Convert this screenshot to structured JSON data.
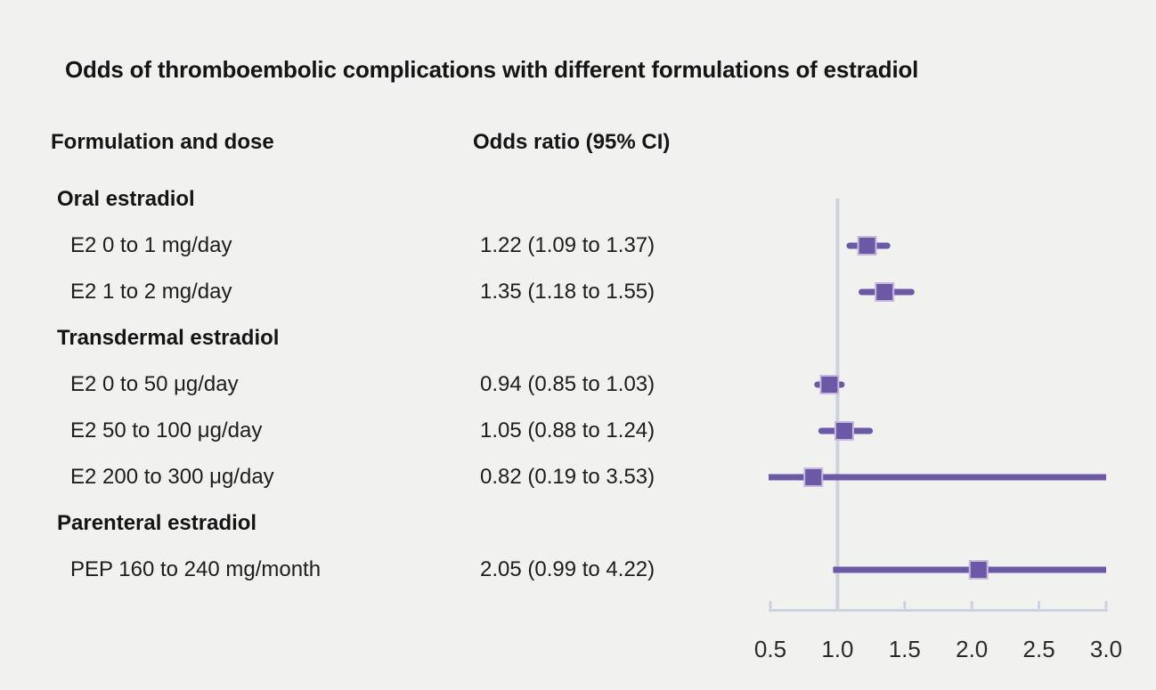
{
  "title": "Odds of thromboembolic complications with different formulations of estradiol",
  "columns": {
    "formulation": "Formulation and dose",
    "odds_ratio": "Odds ratio (95% CI)"
  },
  "chart_data": {
    "type": "forest",
    "title": "Odds of thromboembolic complications with different formulations of estradiol",
    "xlabel": "",
    "ylabel": "",
    "axis": {
      "range": [
        0.5,
        3.0
      ],
      "ticks": [
        0.5,
        1.0,
        1.5,
        2.0,
        2.5,
        3.0
      ],
      "tick_labels": [
        "0.5",
        "1.0",
        "1.5",
        "2.0",
        "2.5",
        "3.0"
      ],
      "reference_line": 1.0
    },
    "rows": [
      {
        "type": "group",
        "label": "Oral estradiol"
      },
      {
        "type": "item",
        "label": "E2 0 to 1 mg/day",
        "value_text": "1.22 (1.09 to 1.37)",
        "or": 1.22,
        "ci_low": 1.09,
        "ci_high": 1.37
      },
      {
        "type": "item",
        "label": "E2 1 to 2 mg/day",
        "value_text": "1.35 (1.18 to 1.55)",
        "or": 1.35,
        "ci_low": 1.18,
        "ci_high": 1.55
      },
      {
        "type": "group",
        "label": "Transdermal estradiol"
      },
      {
        "type": "item",
        "label": "E2 0 to 50 μg/day",
        "value_text": "0.94 (0.85 to 1.03)",
        "or": 0.94,
        "ci_low": 0.85,
        "ci_high": 1.03
      },
      {
        "type": "item",
        "label": "E2 50 to 100 μg/day",
        "value_text": "1.05 (0.88 to 1.24)",
        "or": 1.05,
        "ci_low": 0.88,
        "ci_high": 1.24
      },
      {
        "type": "item",
        "label": "E2 200 to 300 μg/day",
        "value_text": "0.82 (0.19 to 3.53)",
        "or": 0.82,
        "ci_low": 0.19,
        "ci_high": 3.53
      },
      {
        "type": "group",
        "label": "Parenteral estradiol"
      },
      {
        "type": "item",
        "label": "PEP 160 to 240 mg/month",
        "value_text": "2.05 (0.99 to 4.22)",
        "or": 2.05,
        "ci_low": 0.99,
        "ci_high": 4.22
      }
    ],
    "colors": {
      "background": "#f1f1ef",
      "marker": "#6b59a6",
      "marker_border": "#c7b9de",
      "ci_line": "#6b59a6",
      "reference_line": "#ccd2de",
      "axis_line": "#ccd2de",
      "text": "#1d1d1d",
      "tick_text": "#2b2b2b"
    }
  }
}
